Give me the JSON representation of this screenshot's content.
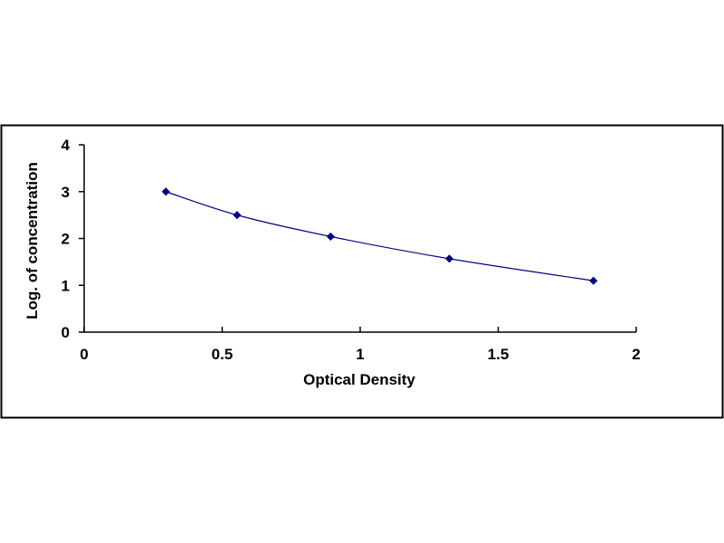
{
  "chart_data": {
    "type": "scatter",
    "xlabel": "Optical Density",
    "ylabel": "Log. of concentration",
    "xlim": [
      0,
      2
    ],
    "ylim": [
      0,
      4
    ],
    "x_ticks": [
      "0",
      "0.5",
      "1",
      "1.5",
      "2"
    ],
    "y_ticks": [
      "0",
      "1",
      "2",
      "3",
      "4"
    ],
    "grid": false,
    "legend": "none",
    "series": [
      {
        "x": [
          0.296,
          0.554,
          0.893,
          1.323,
          1.845
        ],
        "y": [
          3.0,
          2.5,
          2.041,
          1.568,
          1.097
        ],
        "color": "#000080",
        "marker": "diamond",
        "line": "smooth"
      }
    ]
  }
}
